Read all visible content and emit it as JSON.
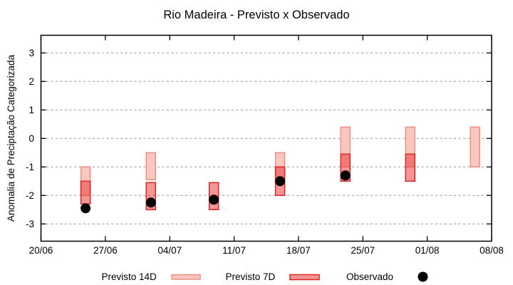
{
  "title": "Rio Madeira - Previsto x Observado",
  "axes": {
    "y_label": "Anomalia de Preciptação Categorizada",
    "y_ticks": [
      3,
      2,
      1,
      0,
      -1,
      -2,
      -3
    ],
    "x_ticks": [
      "20/06",
      "27/06",
      "04/07",
      "11/07",
      "18/07",
      "25/07",
      "01/08",
      "08/08"
    ],
    "y_range": [
      -3.6,
      3.6
    ],
    "x_range_days": [
      0,
      49
    ],
    "grid": "dashed horizontal at each y tick"
  },
  "legend": {
    "position": "bottom",
    "p14_label": "Previsto 14D",
    "p7_label": "Previsto 7D",
    "obs_label": "Observado"
  },
  "colors": {
    "p14_fill": "#f8c7c2",
    "p14_border": "#f0907e",
    "p7_fill_rgba": "rgba(230,45,45,0.5)",
    "p7_border": "#e02420",
    "observado": "#000000",
    "grid": "#979797",
    "plot_border": "#000000"
  },
  "chart_data": {
    "type": "bar",
    "subtype": "range-bars with scatter overlay",
    "title": "Rio Madeira - Previsto x Observado",
    "xlabel": "",
    "ylabel": "Anomalia de Preciptação Categorizada",
    "ylim": [
      -3.6,
      3.6
    ],
    "x_tick_labels": [
      "20/06",
      "27/06",
      "04/07",
      "11/07",
      "18/07",
      "25/07",
      "01/08",
      "08/08"
    ],
    "categories": [
      "25/06",
      "02/07",
      "09/07",
      "16/07",
      "23/07",
      "30/07",
      "06/08"
    ],
    "series": [
      {
        "name": "Previsto 14D",
        "kind": "range",
        "ranges": [
          [
            -2.0,
            -1.0
          ],
          [
            -1.45,
            -0.5
          ],
          null,
          [
            -1.55,
            -0.5
          ],
          [
            -1.0,
            0.4
          ],
          [
            -1.0,
            0.4
          ],
          [
            -1.0,
            0.4
          ]
        ]
      },
      {
        "name": "Previsto 7D",
        "kind": "range",
        "ranges": [
          [
            -2.3,
            -1.5
          ],
          [
            -2.5,
            -1.55
          ],
          [
            -2.5,
            -1.55
          ],
          [
            -2.0,
            -1.0
          ],
          [
            -1.5,
            -0.55
          ],
          [
            -1.5,
            -0.55
          ],
          null
        ]
      },
      {
        "name": "Observado",
        "kind": "scatter",
        "values": [
          -2.45,
          -2.25,
          -2.15,
          -1.5,
          -1.3,
          null,
          null
        ]
      }
    ],
    "groups": [
      {
        "date": "25/06",
        "x_day": 4.85,
        "p14": [
          -2.0,
          -1.0
        ],
        "p7": [
          -2.3,
          -1.5
        ],
        "obs": -2.45
      },
      {
        "date": "02/07",
        "x_day": 11.95,
        "p14": [
          -1.45,
          -0.5
        ],
        "p7": [
          -2.5,
          -1.55
        ],
        "obs": -2.25
      },
      {
        "date": "09/07",
        "x_day": 18.8,
        "p14": null,
        "p7": [
          -2.5,
          -1.55
        ],
        "obs": -2.15
      },
      {
        "date": "16/07",
        "x_day": 26.0,
        "p14": [
          -1.55,
          -0.5
        ],
        "p7": [
          -2.0,
          -1.0
        ],
        "obs": -1.5
      },
      {
        "date": "23/07",
        "x_day": 33.1,
        "p14": [
          -1.0,
          0.4
        ],
        "p7": [
          -1.5,
          -0.55
        ],
        "obs": -1.3
      },
      {
        "date": "30/07",
        "x_day": 40.15,
        "p14": [
          -1.0,
          0.4
        ],
        "p7": [
          -1.5,
          -0.55
        ],
        "obs": null
      },
      {
        "date": "06/08",
        "x_day": 47.2,
        "p14": [
          -1.0,
          0.4
        ],
        "p7": null,
        "obs": null
      }
    ]
  }
}
